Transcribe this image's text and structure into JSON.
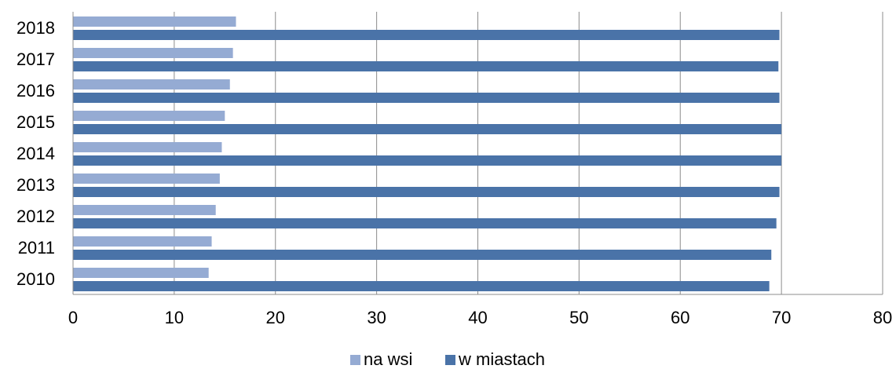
{
  "chart_data": {
    "type": "bar",
    "orientation": "horizontal",
    "categories": [
      "2010",
      "2011",
      "2012",
      "2013",
      "2014",
      "2015",
      "2016",
      "2017",
      "2018"
    ],
    "series": [
      {
        "name": "na wsi",
        "color": "#95abd3",
        "values": [
          13.4,
          13.7,
          14.1,
          14.5,
          14.7,
          15.0,
          15.5,
          15.8,
          16.1
        ]
      },
      {
        "name": "w miastach",
        "color": "#4a73a8",
        "values": [
          68.8,
          69.0,
          69.5,
          69.8,
          70.0,
          70.0,
          69.8,
          69.7,
          69.8
        ]
      }
    ],
    "title": "",
    "xlabel": "",
    "ylabel": "",
    "xlim": [
      0,
      80
    ],
    "xticks": [
      0,
      10,
      20,
      30,
      40,
      50,
      60,
      70,
      80
    ],
    "grid": "vertical",
    "legend_position": "bottom"
  }
}
